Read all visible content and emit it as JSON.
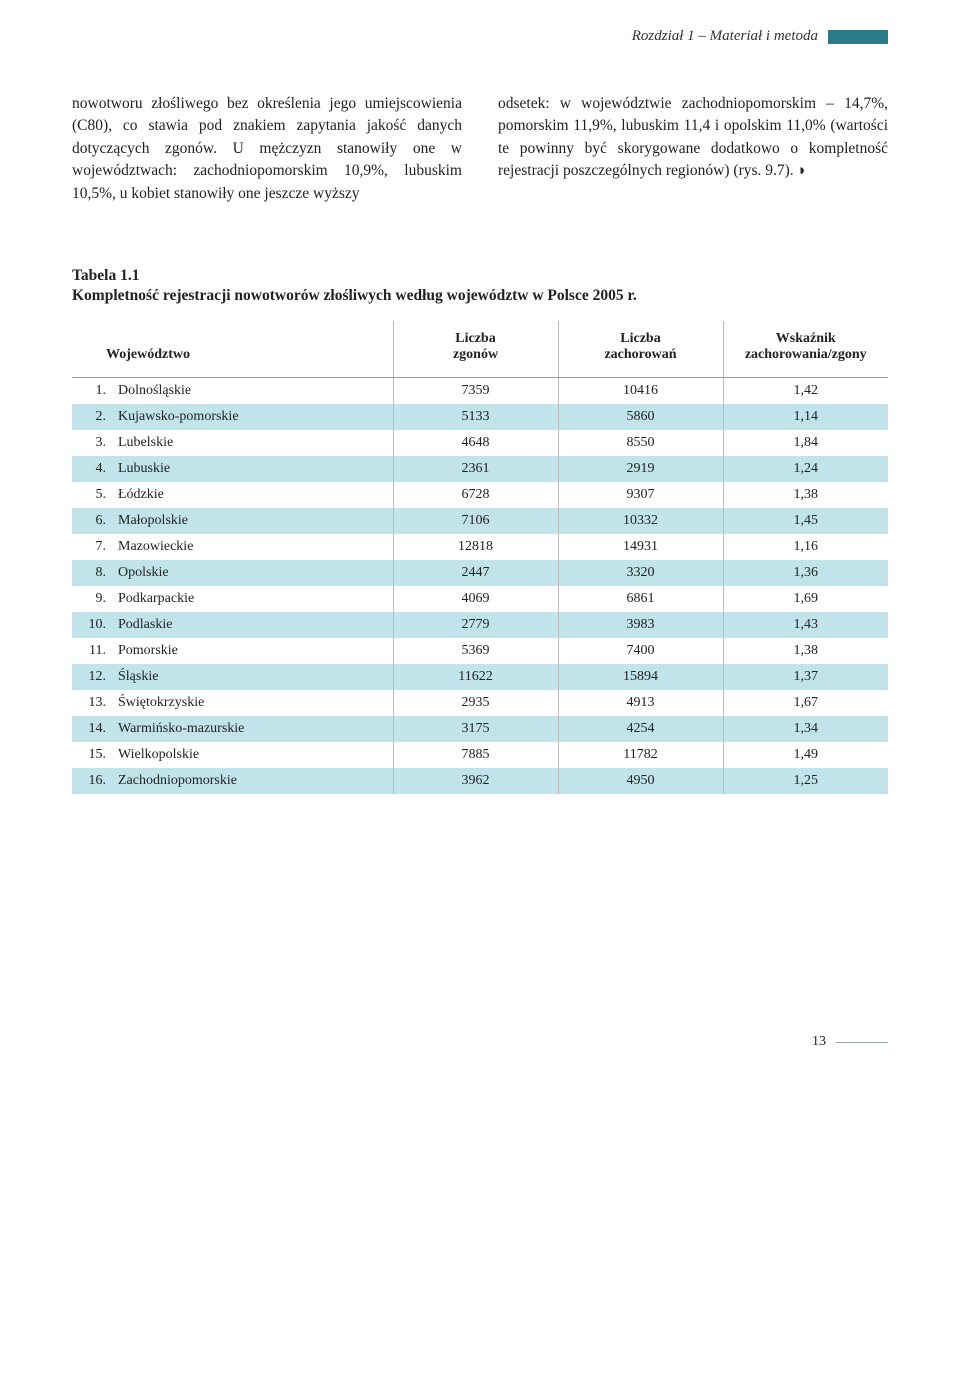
{
  "header": {
    "title": "Rozdział 1 – Materiał i metoda",
    "bar_color": "#2a7a8a"
  },
  "body": {
    "left": "nowotworu złośliwego bez określenia jego umiejscowienia (C80), co stawia pod znakiem zapytania jakość danych dotyczących zgonów. U mężczyzn stanowiły one w województwach: zachodniopomorskim 10,9%, lubuskim 10,5%, u kobiet stanowiły one jeszcze wyższy",
    "right": "odsetek: w województwie zachodniopomorskim – 14,7%, pomorskim 11,9%, lubuskim 11,4 i opolskim 11,0% (wartości te powinny być skorygowane dodatkowo o kompletność rejestracji poszczególnych regionów) (rys. 9.7). ◗"
  },
  "table": {
    "label": "Tabela 1.1",
    "caption": "Kompletność rejestracji nowotworów złośliwych według województw w Polsce 2005 r.",
    "columns": {
      "c0": "Województwo",
      "c1": "Liczba\nzgonów",
      "c2": "Liczba\nzachorowań",
      "c3": "Wskaźnik\nzachorowania/zgony"
    },
    "stripe_even_color": "#c1e3ea",
    "stripe_odd_color": "#ffffff",
    "rows": [
      {
        "idx": "1.",
        "name": "Dolnośląskie",
        "zg": "7359",
        "za": "10416",
        "w": "1,42"
      },
      {
        "idx": "2.",
        "name": "Kujawsko-pomorskie",
        "zg": "5133",
        "za": "5860",
        "w": "1,14"
      },
      {
        "idx": "3.",
        "name": "Lubelskie",
        "zg": "4648",
        "za": "8550",
        "w": "1,84"
      },
      {
        "idx": "4.",
        "name": "Lubuskie",
        "zg": "2361",
        "za": "2919",
        "w": "1,24"
      },
      {
        "idx": "5.",
        "name": "Łódzkie",
        "zg": "6728",
        "za": "9307",
        "w": "1,38"
      },
      {
        "idx": "6.",
        "name": "Małopolskie",
        "zg": "7106",
        "za": "10332",
        "w": "1,45"
      },
      {
        "idx": "7.",
        "name": "Mazowieckie",
        "zg": "12818",
        "za": "14931",
        "w": "1,16"
      },
      {
        "idx": "8.",
        "name": "Opolskie",
        "zg": "2447",
        "za": "3320",
        "w": "1,36"
      },
      {
        "idx": "9.",
        "name": "Podkarpackie",
        "zg": "4069",
        "za": "6861",
        "w": "1,69"
      },
      {
        "idx": "10.",
        "name": "Podlaskie",
        "zg": "2779",
        "za": "3983",
        "w": "1,43"
      },
      {
        "idx": "11.",
        "name": "Pomorskie",
        "zg": "5369",
        "za": "7400",
        "w": "1,38"
      },
      {
        "idx": "12.",
        "name": "Śląskie",
        "zg": "11622",
        "za": "15894",
        "w": "1,37"
      },
      {
        "idx": "13.",
        "name": "Świętokrzyskie",
        "zg": "2935",
        "za": "4913",
        "w": "1,67"
      },
      {
        "idx": "14.",
        "name": "Warmińsko-mazurskie",
        "zg": "3175",
        "za": "4254",
        "w": "1,34"
      },
      {
        "idx": "15.",
        "name": "Wielkopolskie",
        "zg": "7885",
        "za": "11782",
        "w": "1,49"
      },
      {
        "idx": "16.",
        "name": "Zachodniopomorskie",
        "zg": "3962",
        "za": "4950",
        "w": "1,25"
      }
    ]
  },
  "page_number": "13"
}
